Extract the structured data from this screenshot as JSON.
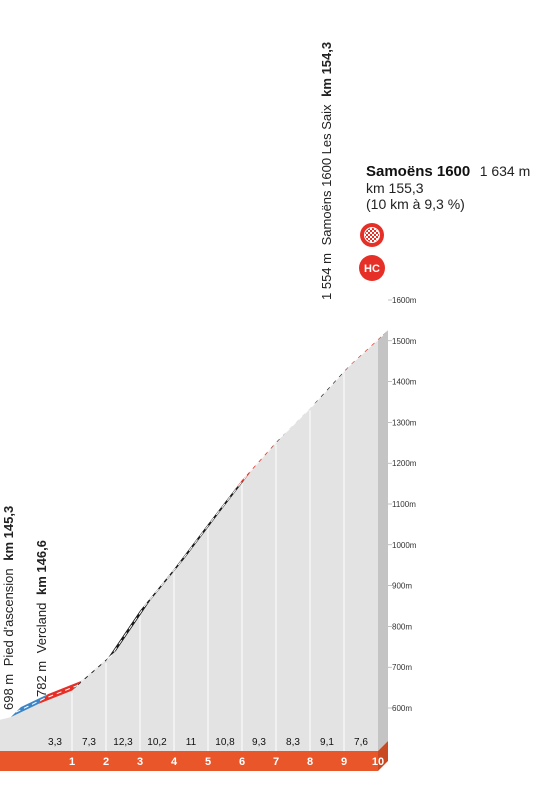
{
  "chart_data": {
    "type": "area",
    "x_unit": "km",
    "y_unit": "m",
    "ylim": [
      600,
      1600
    ],
    "y_ticks": [
      "600m",
      "700m",
      "800m",
      "900m",
      "1000m",
      "1100m",
      "1200m",
      "1300m",
      "1400m",
      "1500m",
      "1600m"
    ],
    "km_labels": [
      "1",
      "2",
      "3",
      "4",
      "5",
      "6",
      "7",
      "8",
      "9",
      "10"
    ],
    "gradients": [
      "3,3",
      "7,3",
      "12,3",
      "10,2",
      "11",
      "10,8",
      "9,3",
      "8,3",
      "9,1",
      "7,6"
    ],
    "gradient_values": [
      3.3,
      7.3,
      12.3,
      10.2,
      11,
      10.8,
      9.3,
      8.3,
      9.1,
      7.6
    ],
    "profile": [
      {
        "km": 0,
        "m": 634
      },
      {
        "km": 1,
        "m": 667
      },
      {
        "km": 2,
        "m": 740
      },
      {
        "km": 3,
        "m": 863
      },
      {
        "km": 4,
        "m": 965
      },
      {
        "km": 5,
        "m": 1075
      },
      {
        "km": 6,
        "m": 1183
      },
      {
        "km": 7,
        "m": 1276
      },
      {
        "km": 8,
        "m": 1359
      },
      {
        "km": 9,
        "m": 1450
      },
      {
        "km": 10,
        "m": 1526
      }
    ],
    "road_colors": {
      "blue": "#3a86c8",
      "red": "#e63027",
      "black": "#1a1a1a",
      "orange": "#e8562a"
    },
    "segments": [
      {
        "from_km": -0.8,
        "to_km": 0,
        "color": "blue"
      },
      {
        "from_km": 0,
        "to_km": 1,
        "color": "red"
      },
      {
        "from_km": 1,
        "to_km": 5.8,
        "color": "black"
      },
      {
        "from_km": 5.8,
        "to_km": 6.8,
        "color": "red"
      },
      {
        "from_km": 6.8,
        "to_km": 9,
        "color": "black"
      },
      {
        "from_km": 9,
        "to_km": 10,
        "color": "red"
      }
    ],
    "annotations": {
      "start1": {
        "alt": "698 m",
        "name": "Pied d'ascension",
        "km": "km 145,3"
      },
      "start2": {
        "alt": "782 m",
        "name": "Vercland",
        "km": "km 146,6"
      },
      "mid": {
        "alt": "1 554 m",
        "name": "Samoëns 1600 Les Saix",
        "km": "km 154,3"
      }
    },
    "summit": {
      "name": "Samoëns 1600",
      "alt": "1 634 m",
      "km": "km 155,3",
      "detail": "(10 km à 9,3 %)",
      "category": "HC"
    }
  }
}
